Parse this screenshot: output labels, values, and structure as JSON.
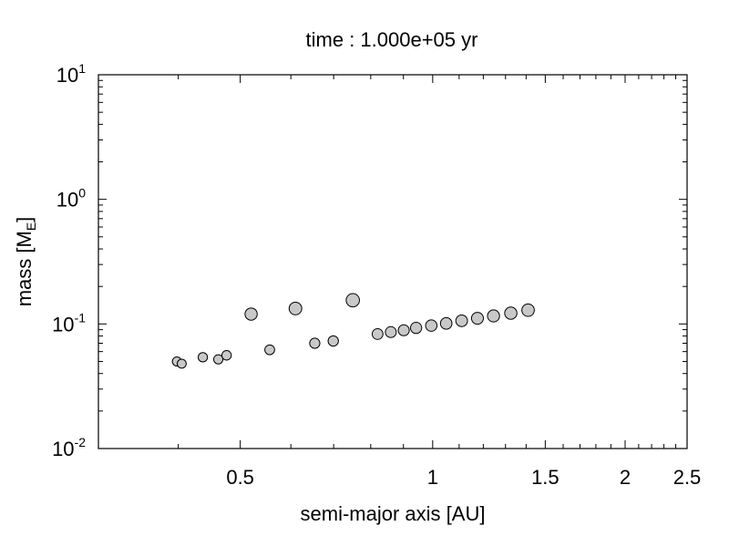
{
  "chart_data": {
    "type": "scatter",
    "title": "time : 1.000e+05 yr",
    "xlabel": "semi-major axis [AU]",
    "ylabel": {
      "text": "mass [M",
      "subscript": "E",
      "suffix": "]"
    },
    "xscale": "log",
    "yscale": "log",
    "xlim": [
      0.3,
      2.5
    ],
    "ylim": [
      0.01,
      10
    ],
    "x_ticks": [
      {
        "value": 0.5,
        "label": "0.5"
      },
      {
        "value": 1,
        "label": "1"
      },
      {
        "value": 1.5,
        "label": "1.5"
      },
      {
        "value": 2,
        "label": "2"
      },
      {
        "value": 2.5,
        "label": "2.5"
      }
    ],
    "y_ticks": [
      {
        "value": 0.01,
        "base": "10",
        "exp": "-2"
      },
      {
        "value": 0.1,
        "base": "10",
        "exp": "-1"
      },
      {
        "value": 1,
        "base": "10",
        "exp": "0"
      },
      {
        "value": 10,
        "base": "10",
        "exp": "1"
      }
    ],
    "grid": false,
    "marker_color": "#c8c8c8",
    "marker_edge_color": "#000000",
    "points": [
      {
        "x": 0.398,
        "y": 0.05
      },
      {
        "x": 0.405,
        "y": 0.048
      },
      {
        "x": 0.437,
        "y": 0.054
      },
      {
        "x": 0.462,
        "y": 0.052
      },
      {
        "x": 0.476,
        "y": 0.056
      },
      {
        "x": 0.52,
        "y": 0.12
      },
      {
        "x": 0.556,
        "y": 0.062
      },
      {
        "x": 0.61,
        "y": 0.133
      },
      {
        "x": 0.654,
        "y": 0.07
      },
      {
        "x": 0.699,
        "y": 0.073
      },
      {
        "x": 0.75,
        "y": 0.155
      },
      {
        "x": 0.82,
        "y": 0.083
      },
      {
        "x": 0.86,
        "y": 0.086
      },
      {
        "x": 0.901,
        "y": 0.089
      },
      {
        "x": 0.942,
        "y": 0.093
      },
      {
        "x": 0.995,
        "y": 0.097
      },
      {
        "x": 1.05,
        "y": 0.101
      },
      {
        "x": 1.11,
        "y": 0.106
      },
      {
        "x": 1.175,
        "y": 0.111
      },
      {
        "x": 1.245,
        "y": 0.116
      },
      {
        "x": 1.325,
        "y": 0.122
      },
      {
        "x": 1.41,
        "y": 0.129
      }
    ]
  }
}
